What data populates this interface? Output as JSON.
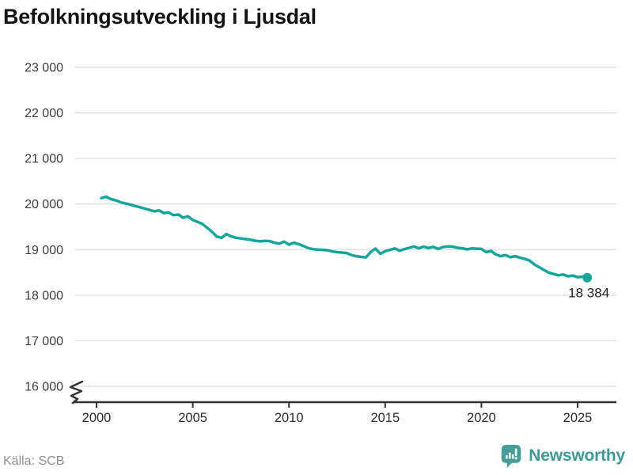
{
  "title": "Befolkningsutveckling i Ljusdal",
  "footer": {
    "source": "Källa: SCB",
    "brand": "Newsworthy"
  },
  "colors": {
    "line": "#13a79b",
    "end_dot": "#13a79b",
    "grid": "#e2e2e2",
    "axis": "#333333",
    "title_text": "#141414",
    "y_tick_text": "#3c3c3c",
    "x_tick_text": "#2b2b2b",
    "annotation_text": "#222222",
    "source_text": "#8f8f8f",
    "logo_bubble": "#479e98",
    "logo_text": "#3d9a94"
  },
  "chart_data": {
    "type": "line",
    "title": "Befolkningsutveckling i Ljusdal",
    "xlabel": "",
    "ylabel": "",
    "grid": true,
    "legend": false,
    "y_axis_break": true,
    "ylim": [
      16000,
      23000
    ],
    "xlim": [
      1999,
      2027
    ],
    "ytick_values": [
      23000,
      22000,
      21000,
      20000,
      19000,
      18000,
      17000,
      16000
    ],
    "ytick_labels": [
      "23 000",
      "22 000",
      "21 000",
      "20 000",
      "19 000",
      "18 000",
      "17 000",
      "16 000"
    ],
    "xtick_values": [
      2000,
      2005,
      2010,
      2015,
      2020,
      2025
    ],
    "xtick_labels": [
      "2000",
      "2005",
      "2010",
      "2015",
      "2020",
      "2025"
    ],
    "end_point": {
      "x": 2025.5,
      "value": 18384,
      "label": "18 384"
    },
    "x": [
      2000.25,
      2000.5,
      2000.75,
      2001,
      2001.25,
      2001.5,
      2001.75,
      2002,
      2002.25,
      2002.5,
      2002.75,
      2003,
      2003.25,
      2003.5,
      2003.75,
      2004,
      2004.25,
      2004.5,
      2004.75,
      2005,
      2005.25,
      2005.5,
      2005.75,
      2006,
      2006.25,
      2006.5,
      2006.75,
      2007,
      2007.25,
      2007.5,
      2007.75,
      2008,
      2008.25,
      2008.5,
      2008.75,
      2009,
      2009.25,
      2009.5,
      2009.75,
      2010,
      2010.25,
      2010.5,
      2010.75,
      2011,
      2011.25,
      2011.5,
      2011.75,
      2012,
      2012.25,
      2012.5,
      2012.75,
      2013,
      2013.25,
      2013.5,
      2013.75,
      2014,
      2014.25,
      2014.5,
      2014.75,
      2015,
      2015.25,
      2015.5,
      2015.75,
      2016,
      2016.25,
      2016.5,
      2016.75,
      2017,
      2017.25,
      2017.5,
      2017.75,
      2018,
      2018.25,
      2018.5,
      2018.75,
      2019,
      2019.25,
      2019.5,
      2019.75,
      2020,
      2020.25,
      2020.5,
      2020.75,
      2021,
      2021.25,
      2021.5,
      2021.75,
      2022,
      2022.25,
      2022.5,
      2022.75,
      2023,
      2023.25,
      2023.5,
      2023.75,
      2024,
      2024.25,
      2024.5,
      2024.75,
      2025,
      2025.25,
      2025.5
    ],
    "values": [
      20130,
      20160,
      20110,
      20080,
      20040,
      20010,
      19990,
      19955,
      19930,
      19900,
      19870,
      19840,
      19860,
      19800,
      19815,
      19755,
      19770,
      19700,
      19730,
      19650,
      19610,
      19560,
      19480,
      19390,
      19285,
      19260,
      19340,
      19290,
      19260,
      19245,
      19230,
      19215,
      19195,
      19180,
      19190,
      19185,
      19150,
      19130,
      19175,
      19110,
      19150,
      19120,
      19080,
      19035,
      19010,
      19000,
      18995,
      18985,
      18960,
      18945,
      18935,
      18925,
      18880,
      18855,
      18840,
      18830,
      18950,
      19020,
      18910,
      18965,
      18995,
      19025,
      18975,
      19010,
      19040,
      19070,
      19030,
      19065,
      19035,
      19060,
      19015,
      19055,
      19070,
      19065,
      19040,
      19030,
      19005,
      19025,
      19020,
      19015,
      18945,
      18970,
      18895,
      18855,
      18880,
      18835,
      18855,
      18825,
      18795,
      18760,
      18675,
      18615,
      18555,
      18495,
      18465,
      18435,
      18455,
      18415,
      18430,
      18395,
      18405,
      18384
    ]
  }
}
